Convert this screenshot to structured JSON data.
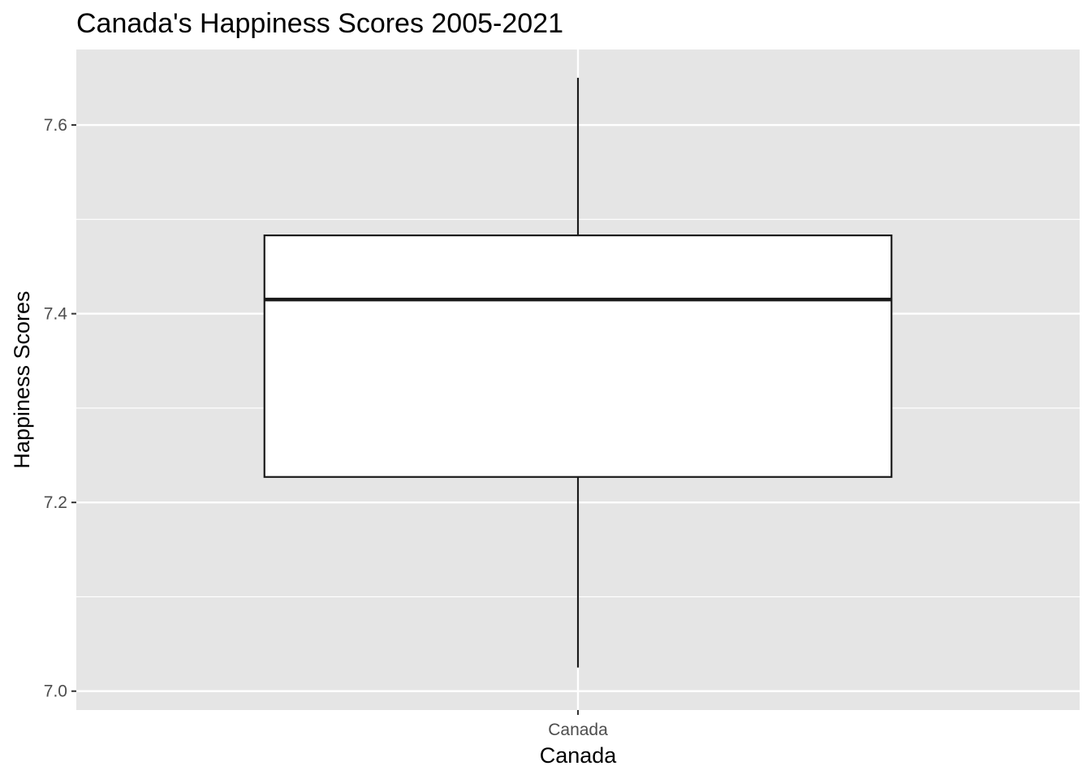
{
  "chart_data": {
    "type": "boxplot",
    "title": "Canada's Happiness Scores 2005-2021",
    "xlabel": "Canada",
    "ylabel": "Happiness Scores",
    "categories": [
      "Canada"
    ],
    "boxes": [
      {
        "category": "Canada",
        "min": 7.025,
        "q1": 7.227,
        "median": 7.415,
        "q3": 7.483,
        "max": 7.65
      }
    ],
    "ylim": [
      6.98,
      7.68
    ],
    "yticks": [
      7.0,
      7.2,
      7.4,
      7.6
    ],
    "ytick_labels": [
      "7.0",
      "7.2",
      "7.4",
      "7.6"
    ],
    "grid": true,
    "colors": {
      "panel_background": "#e5e5e5",
      "grid": "#ffffff",
      "box_fill": "#ffffff",
      "box_stroke": "#1a1a1a",
      "tick_label": "#4d4d4d"
    }
  }
}
